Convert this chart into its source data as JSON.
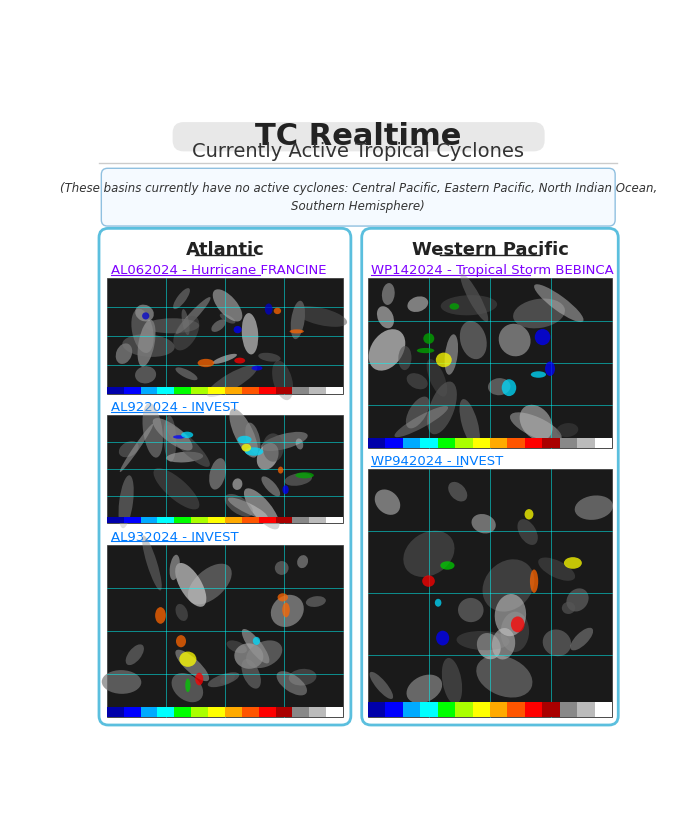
{
  "title": "TC Realtime",
  "subtitle": "Currently Active Tropical Cyclones",
  "no_cyclone_text": "(These basins currently have no active cyclones: Central Pacific, Eastern Pacific, North Indian Ocean,\nSouthern Hemisphere)",
  "left_panel_title": "Atlantic",
  "right_panel_title": "Western Pacific",
  "left_storms": [
    {
      "label": "AL062024 - Hurricane FRANCINE",
      "color": "#7f00ff"
    },
    {
      "label": "AL922024 - INVEST",
      "color": "#007bff"
    },
    {
      "label": "AL932024 - INVEST",
      "color": "#007bff"
    }
  ],
  "right_storms": [
    {
      "label": "WP142024 - Tropical Storm BEBINCA",
      "color": "#7f00ff"
    },
    {
      "label": "WP942024 - INVEST",
      "color": "#007bff"
    }
  ],
  "bg_color": "#ffffff",
  "title_bg": "#e8e8e8",
  "panel_border_color": "#5bbfde",
  "no_cyclone_border": "#90c0e0",
  "separator_color": "#cccccc",
  "sat_img_bg": "#1a1a1a",
  "sat_img_border": "#333333",
  "title_font_size": 22,
  "subtitle_font_size": 14,
  "storm_label_font_size": 9.5,
  "panel_title_font_size": 13
}
